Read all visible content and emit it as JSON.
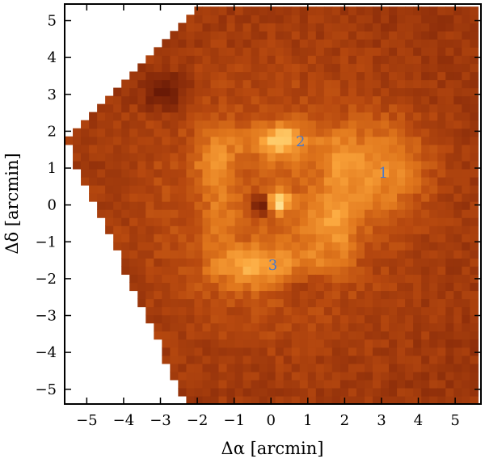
{
  "chart_data": {
    "type": "heatmap",
    "xlabel": "Δα [arcmin]",
    "ylabel": "Δδ [arcmin]",
    "xlim": [
      -5.6,
      5.7
    ],
    "ylim": [
      -5.4,
      5.45
    ],
    "x_ticks": [
      -5,
      -4,
      -3,
      -2,
      -1,
      0,
      1,
      2,
      3,
      4,
      5
    ],
    "y_ticks": [
      -5,
      -4,
      -3,
      -2,
      -1,
      0,
      1,
      2,
      3,
      4,
      5
    ],
    "x_tick_labels": [
      "−5",
      "−4",
      "−3",
      "−2",
      "−1",
      "0",
      "1",
      "2",
      "3",
      "4",
      "5"
    ],
    "y_tick_labels": [
      "−5",
      "−4",
      "−3",
      "−2",
      "−1",
      "0",
      "1",
      "2",
      "3",
      "4",
      "5"
    ],
    "colormap": [
      "#6a1a06",
      "#8e2e0a",
      "#b8490f",
      "#e0761c",
      "#fba43a",
      "#ffd879",
      "#ffffff"
    ],
    "pixel_size": 0.22,
    "footprint": {
      "corners": [
        [
          -5.6,
          1.8
        ],
        [
          -1.9,
          5.45
        ],
        [
          5.7,
          5.45
        ],
        [
          5.7,
          -5.4
        ],
        [
          -2.3,
          -5.4
        ]
      ]
    },
    "regions": [
      {
        "label": "1",
        "x": 3.05,
        "y": 0.85
      },
      {
        "label": "2",
        "x": 0.8,
        "y": 1.7
      },
      {
        "label": "3",
        "x": 0.05,
        "y": -1.65
      }
    ],
    "features": [
      {
        "kind": "bright",
        "x": 3.0,
        "y": 1.0,
        "sx": 0.9,
        "sy": 0.9,
        "amp": 0.28
      },
      {
        "kind": "bright",
        "x": 0.3,
        "y": 1.8,
        "sx": 0.35,
        "sy": 0.3,
        "amp": 0.35
      },
      {
        "kind": "bright",
        "x": 0.2,
        "y": 0.1,
        "sx": 0.2,
        "sy": 0.2,
        "amp": 0.5
      },
      {
        "kind": "bright",
        "x": -0.5,
        "y": -1.8,
        "sx": 0.7,
        "sy": 0.4,
        "amp": 0.22
      },
      {
        "kind": "bright",
        "x": -1.6,
        "y": 1.2,
        "sx": 0.4,
        "sy": 0.4,
        "amp": 0.15
      },
      {
        "kind": "bright",
        "x": 1.5,
        "y": -0.5,
        "sx": 0.6,
        "sy": 0.6,
        "amp": 0.15
      },
      {
        "kind": "bright",
        "x": 0.0,
        "y": 0.0,
        "sx": 2.6,
        "sy": 2.6,
        "amp": 0.2
      },
      {
        "kind": "dark",
        "x": -2.9,
        "y": 3.1,
        "sx": 0.4,
        "sy": 0.35,
        "amp": -0.3
      },
      {
        "kind": "dark",
        "x": -0.25,
        "y": 0.0,
        "sx": 0.18,
        "sy": 0.18,
        "amp": -0.45
      },
      {
        "kind": "dark",
        "x": 0.8,
        "y": -2.2,
        "sx": 0.5,
        "sy": 0.3,
        "amp": -0.1
      }
    ]
  }
}
